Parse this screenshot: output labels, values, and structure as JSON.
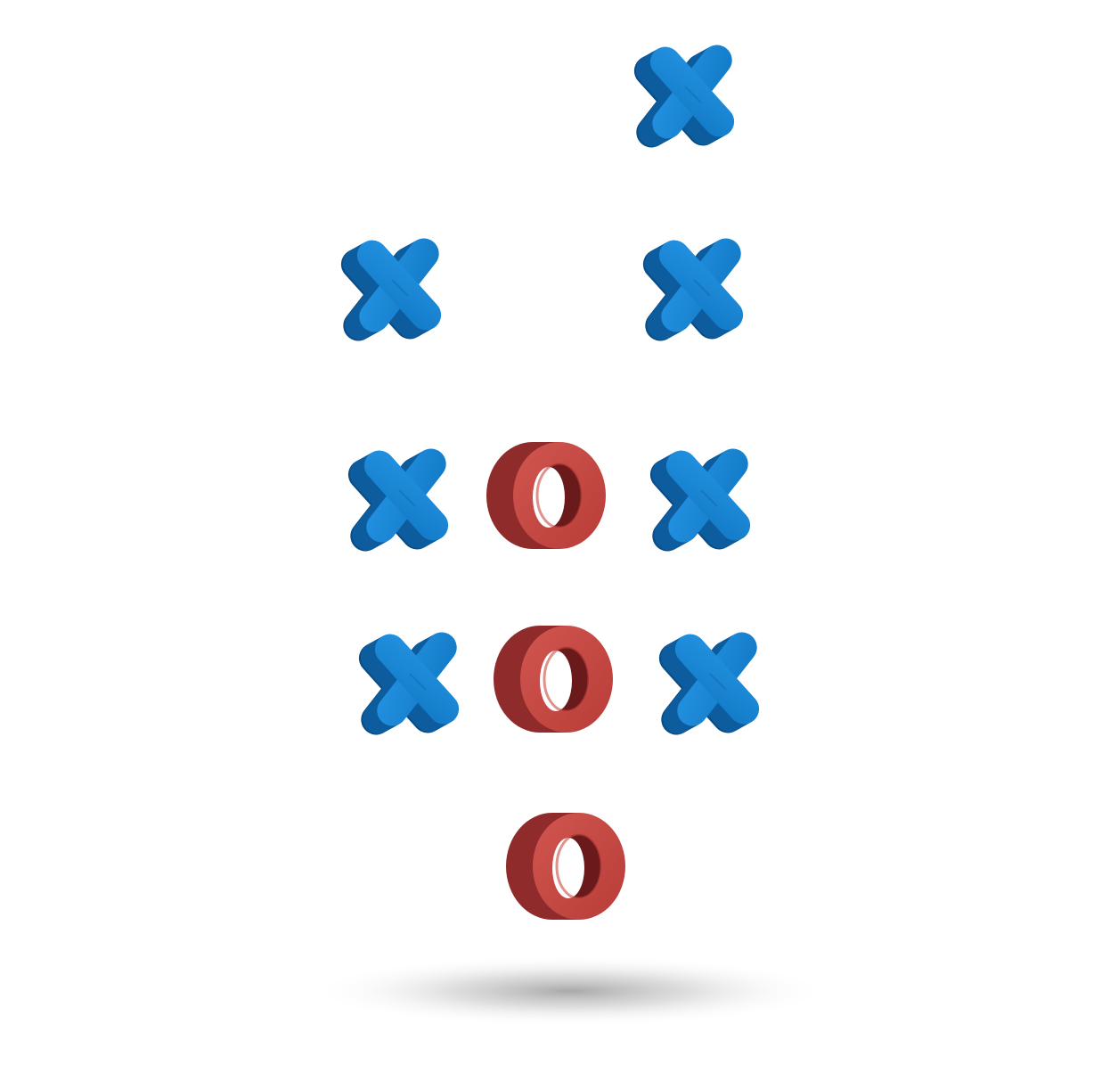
{
  "pieces": [
    {
      "type": "X",
      "column": 3,
      "row": 1
    },
    {
      "type": "X",
      "column": 1,
      "row": 2
    },
    {
      "type": "X",
      "column": 3,
      "row": 2
    },
    {
      "type": "X",
      "column": 1,
      "row": 3
    },
    {
      "type": "O",
      "column": 2,
      "row": 3
    },
    {
      "type": "X",
      "column": 3,
      "row": 3
    },
    {
      "type": "X",
      "column": 1,
      "row": 4
    },
    {
      "type": "O",
      "column": 2,
      "row": 4
    },
    {
      "type": "X",
      "column": 3,
      "row": 4
    },
    {
      "type": "O",
      "column": 2,
      "row": 5
    }
  ],
  "colors": {
    "x_top": "#1a86d6",
    "x_side": "#0d5c9e",
    "x_shade": "#0a4d86",
    "o_top": "#c94840",
    "o_side": "#8f2b2a",
    "o_inner": "#6a1a1b",
    "shadow": "#9a9a9a",
    "background": "#ffffff"
  },
  "icons": {
    "X": "x-piece-icon",
    "O": "o-piece-icon",
    "shadow": "ground-shadow"
  }
}
